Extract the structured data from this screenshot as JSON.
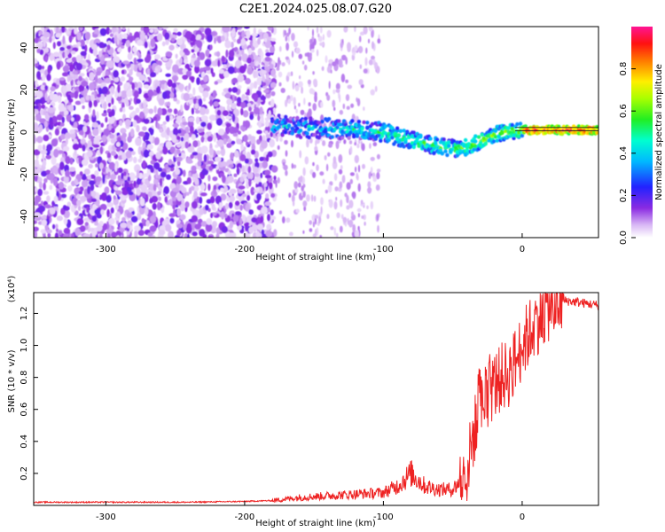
{
  "title": "C2E1.2024.025.08.07.G20",
  "colors": {
    "series": "#ee2222",
    "axis": "#000000",
    "background": "#ffffff"
  },
  "chart_data": [
    {
      "type": "heatmap",
      "xlabel": "Height of straight line (km)",
      "ylabel": "Frequency (Hz)",
      "xlim": [
        -352,
        55
      ],
      "ylim": [
        -50,
        50
      ],
      "xticks": [
        "-300",
        "-200",
        "-100",
        "0"
      ],
      "yticks": [
        "-40",
        "-20",
        "0",
        "20",
        "40"
      ],
      "colormap": "rainbow (white-violet-blue-cyan-green-yellow-red-magenta)",
      "colorbar": {
        "label": "Normalized spectral amplitude",
        "range": [
          0,
          1
        ],
        "ticks": [
          "0.0",
          "0.2",
          "0.4",
          "0.6",
          "0.8"
        ]
      },
      "dominant_frequency_track": {
        "x": [
          -180,
          -150,
          -120,
          -100,
          -80,
          -60,
          -45,
          -35,
          -20,
          0,
          20,
          55
        ],
        "y": [
          3,
          2,
          1,
          0,
          -4,
          -7,
          -8,
          -6,
          -1,
          1,
          1,
          1
        ]
      }
    },
    {
      "type": "line",
      "xlabel": "Height of straight line (km)",
      "ylabel": "SNR (10 * v/v)",
      "y_multiplier": "(x10⁴)",
      "xlim": [
        -352,
        55
      ],
      "ylim": [
        0,
        1.33
      ],
      "xticks": [
        "-300",
        "-200",
        "-100",
        "0"
      ],
      "yticks": [
        "0.2",
        "0.4",
        "0.6",
        "0.8",
        "1.0",
        "1.2"
      ],
      "series": [
        {
          "x": [
            -352,
            -320,
            -280,
            -240,
            -200,
            -180,
            -160,
            -140,
            -120,
            -100,
            -90,
            -80,
            -70,
            -60,
            -50,
            -40,
            -35,
            -30,
            -25,
            -20,
            -15,
            -10,
            -5,
            0,
            10,
            20,
            30,
            40,
            55
          ],
          "y": [
            0.02,
            0.02,
            0.02,
            0.02,
            0.025,
            0.03,
            0.05,
            0.06,
            0.07,
            0.08,
            0.12,
            0.2,
            0.12,
            0.1,
            0.1,
            0.2,
            0.45,
            0.6,
            0.7,
            0.75,
            0.8,
            0.82,
            0.9,
            1.0,
            1.15,
            1.25,
            1.28,
            1.27,
            1.25
          ]
        }
      ]
    }
  ]
}
